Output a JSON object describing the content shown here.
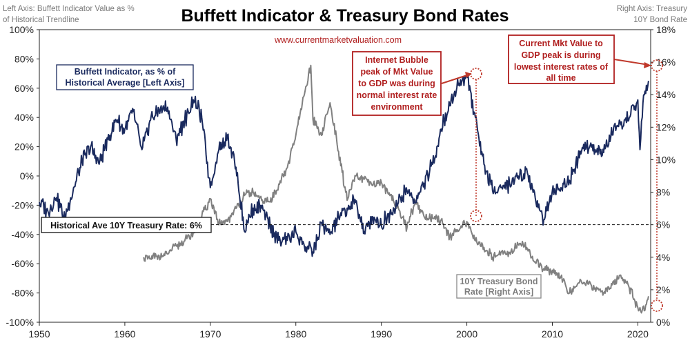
{
  "chart_data": {
    "type": "line",
    "title": "Buffett Indicator & Treasury Bond Rates",
    "source": "www.currentmarketvaluation.com",
    "left_axis_caption": [
      "Left Axis: Buffett Indicator Value as %",
      "of Historical Trendline"
    ],
    "right_axis_caption": [
      "Right Axis: Treasury",
      "10Y Bond Rate"
    ],
    "x_ticks": [
      "1950",
      "1960",
      "1970",
      "1980",
      "1990",
      "2000",
      "2010",
      "2020"
    ],
    "y_left_ticks": [
      "100%",
      "80%",
      "60%",
      "40%",
      "20%",
      "0%",
      "-20%",
      "-40%",
      "-60%",
      "-80%",
      "-100%"
    ],
    "y_right_ticks": [
      "18%",
      "16%",
      "14%",
      "12%",
      "10%",
      "8%",
      "6%",
      "4%",
      "2%",
      "0%"
    ],
    "xlim": [
      1950,
      2021.5
    ],
    "ylim_left": [
      -100,
      100
    ],
    "ylim_right": [
      0,
      18
    ],
    "grid": false,
    "historical_average_rate": 6,
    "series": [
      {
        "name": "Buffett Indicator, as % of Historical Average [Left Axis]",
        "axis": "left",
        "color": "#1a2a5e",
        "points": [
          [
            1950,
            -18
          ],
          [
            1951,
            -24
          ],
          [
            1952,
            -15
          ],
          [
            1953,
            -28
          ],
          [
            1954,
            -8
          ],
          [
            1955,
            10
          ],
          [
            1956,
            20
          ],
          [
            1957,
            8
          ],
          [
            1958,
            25
          ],
          [
            1959,
            38
          ],
          [
            1960,
            32
          ],
          [
            1961,
            44
          ],
          [
            1962,
            18
          ],
          [
            1963,
            38
          ],
          [
            1964,
            45
          ],
          [
            1965,
            47
          ],
          [
            1966,
            25
          ],
          [
            1967,
            38
          ],
          [
            1968,
            52
          ],
          [
            1969,
            40
          ],
          [
            1970,
            -8
          ],
          [
            1971,
            18
          ],
          [
            1972,
            28
          ],
          [
            1973,
            6
          ],
          [
            1974,
            -38
          ],
          [
            1975,
            -22
          ],
          [
            1976,
            -22
          ],
          [
            1977,
            -34
          ],
          [
            1978,
            -44
          ],
          [
            1979,
            -44
          ],
          [
            1980,
            -38
          ],
          [
            1981,
            -48
          ],
          [
            1982,
            -52
          ],
          [
            1983,
            -32
          ],
          [
            1984,
            -40
          ],
          [
            1985,
            -28
          ],
          [
            1986,
            -22
          ],
          [
            1987,
            -18
          ],
          [
            1988,
            -38
          ],
          [
            1989,
            -28
          ],
          [
            1990,
            -34
          ],
          [
            1991,
            -25
          ],
          [
            1992,
            -18
          ],
          [
            1993,
            -10
          ],
          [
            1994,
            -18
          ],
          [
            1995,
            -5
          ],
          [
            1996,
            8
          ],
          [
            1997,
            32
          ],
          [
            1998,
            48
          ],
          [
            1999,
            62
          ],
          [
            2000,
            68
          ],
          [
            2001,
            40
          ],
          [
            2002,
            8
          ],
          [
            2003,
            -10
          ],
          [
            2004,
            -8
          ],
          [
            2005,
            -5
          ],
          [
            2006,
            0
          ],
          [
            2007,
            5
          ],
          [
            2008,
            -15
          ],
          [
            2009,
            -30
          ],
          [
            2010,
            -10
          ],
          [
            2011,
            -8
          ],
          [
            2012,
            -3
          ],
          [
            2013,
            12
          ],
          [
            2014,
            20
          ],
          [
            2015,
            18
          ],
          [
            2016,
            16
          ],
          [
            2017,
            28
          ],
          [
            2018,
            35
          ],
          [
            2019,
            40
          ],
          [
            2020,
            52
          ],
          [
            2020.25,
            18
          ],
          [
            2020.6,
            50
          ],
          [
            2021,
            62
          ],
          [
            2021.25,
            65
          ]
        ]
      },
      {
        "name": "10Y Treasury Bond Rate [Right Axis]",
        "axis": "right",
        "color": "#808080",
        "points": [
          [
            1962.2,
            4.0
          ],
          [
            1963,
            3.9
          ],
          [
            1964,
            4.1
          ],
          [
            1965,
            4.2
          ],
          [
            1966,
            4.7
          ],
          [
            1967,
            5.0
          ],
          [
            1968,
            5.5
          ],
          [
            1969,
            6.5
          ],
          [
            1970,
            7.6
          ],
          [
            1971,
            6.0
          ],
          [
            1972,
            6.2
          ],
          [
            1973,
            7.0
          ],
          [
            1974,
            7.8
          ],
          [
            1975,
            8.0
          ],
          [
            1976,
            7.5
          ],
          [
            1977,
            7.4
          ],
          [
            1978,
            8.5
          ],
          [
            1979,
            9.5
          ],
          [
            1980,
            11.5
          ],
          [
            1981,
            14.0
          ],
          [
            1981.75,
            15.8
          ],
          [
            1982,
            12.5
          ],
          [
            1983,
            11.5
          ],
          [
            1984,
            13.5
          ],
          [
            1985,
            10.5
          ],
          [
            1986,
            7.5
          ],
          [
            1987,
            9.0
          ],
          [
            1988,
            8.8
          ],
          [
            1989,
            8.4
          ],
          [
            1990,
            8.6
          ],
          [
            1991,
            7.8
          ],
          [
            1992,
            7.0
          ],
          [
            1993,
            5.8
          ],
          [
            1994,
            7.5
          ],
          [
            1995,
            6.5
          ],
          [
            1996,
            6.4
          ],
          [
            1997,
            6.3
          ],
          [
            1998,
            5.3
          ],
          [
            1999,
            5.6
          ],
          [
            2000,
            6.2
          ],
          [
            2001,
            5.0
          ],
          [
            2002,
            4.6
          ],
          [
            2003,
            4.0
          ],
          [
            2004,
            4.3
          ],
          [
            2005,
            4.3
          ],
          [
            2006,
            4.8
          ],
          [
            2007,
            4.6
          ],
          [
            2008,
            3.7
          ],
          [
            2009,
            3.3
          ],
          [
            2010,
            3.2
          ],
          [
            2011,
            2.8
          ],
          [
            2012,
            1.8
          ],
          [
            2013,
            2.4
          ],
          [
            2014,
            2.5
          ],
          [
            2015,
            2.1
          ],
          [
            2016,
            1.8
          ],
          [
            2017,
            2.3
          ],
          [
            2018,
            2.9
          ],
          [
            2019,
            2.1
          ],
          [
            2020,
            0.9
          ],
          [
            2020.5,
            0.7
          ],
          [
            2021,
            1.1
          ],
          [
            2021.25,
            1.6
          ]
        ]
      }
    ],
    "annotations": {
      "buffett_label": [
        "Buffett Indicator, as % of",
        "Historical Average [Left Axis]"
      ],
      "treasury_label": [
        "10Y Treasury Bond",
        "Rate [Right Axis]"
      ],
      "historical_average_label": "Historical Ave 10Y Treasury Rate: 6%",
      "bubble_note": [
        "Internet Bubble",
        "peak of Mkt Value",
        "to GDP was during",
        "normal interest rate",
        "environment"
      ],
      "current_note": [
        "Current Mkt Value to",
        "GDP peak is during",
        "lowest interest rates of",
        "all time"
      ]
    }
  }
}
